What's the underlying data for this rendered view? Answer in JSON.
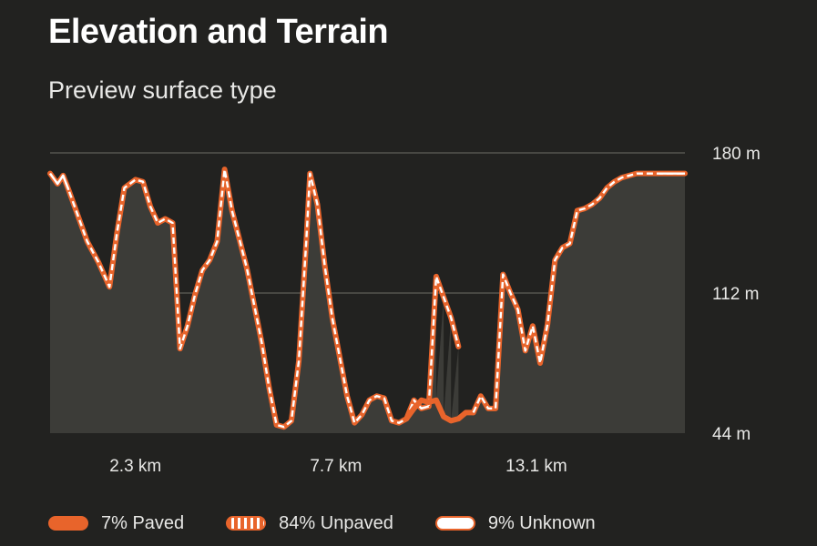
{
  "header": {
    "title": "Elevation and Terrain",
    "subtitle": "Preview surface type"
  },
  "colors": {
    "background": "#222220",
    "paved": "#e8642b",
    "unpaved_dash": "#ffffff",
    "area_fill": "#3c3c38",
    "grid": "#55554f"
  },
  "legend": {
    "paved": "7% Paved",
    "unpaved": "84% Unpaved",
    "unknown": "9% Unknown"
  },
  "chart_data": {
    "type": "area",
    "title": "Elevation and Terrain",
    "subtitle": "Preview surface type",
    "x_unit": "km",
    "xlim": [
      0,
      17.1
    ],
    "ylim": [
      44,
      180
    ],
    "yticks": [
      {
        "value": 180,
        "label": "180 m"
      },
      {
        "value": 112,
        "label": "112 m"
      },
      {
        "value": 44,
        "label": "44 m"
      }
    ],
    "xticks": [
      {
        "value": 2.3,
        "label": "2.3 km"
      },
      {
        "value": 7.7,
        "label": "7.7 km"
      },
      {
        "value": 13.1,
        "label": "13.1 km"
      }
    ],
    "grid": true,
    "legend_position": "bottom-left",
    "series": [
      {
        "surface": "unpaved",
        "x": [
          0,
          0.2,
          0.35,
          0.5,
          0.8,
          1.0,
          1.3,
          1.6,
          1.8,
          2.0,
          2.3,
          2.5,
          2.7,
          2.9,
          3.1,
          3.3,
          3.5,
          3.7,
          3.9,
          4.1,
          4.3,
          4.5,
          4.7,
          4.9,
          5.1,
          5.3,
          5.5,
          5.7,
          5.9,
          6.1,
          6.3,
          6.5,
          6.7,
          6.9,
          7.0,
          7.2,
          7.4,
          7.6,
          7.8,
          8.0,
          8.2,
          8.4,
          8.6,
          8.8,
          9.0,
          9.2,
          9.4,
          9.6,
          9.8,
          10.0,
          10.2,
          10.4,
          10.6,
          10.8,
          11.0
        ],
        "y": [
          170,
          165,
          169,
          162,
          147,
          137,
          127,
          115,
          141,
          163,
          167,
          166,
          154,
          146,
          148,
          146,
          85,
          96,
          111,
          123,
          128,
          137,
          172,
          152,
          138,
          124,
          106,
          88,
          66,
          48,
          47,
          50,
          79,
          137,
          170,
          155,
          125,
          100,
          81,
          62,
          49,
          53,
          60,
          62,
          61,
          50,
          49,
          51,
          60,
          56,
          57,
          120,
          110,
          100,
          86
        ],
        "unknown_ranges": [
          [
            0,
            0.5
          ],
          [
            9.7,
            10.2
          ]
        ]
      },
      {
        "surface": "paved",
        "x": [
          9.6,
          9.8,
          10.0,
          10.2,
          10.4,
          10.6,
          10.8,
          11.0,
          11.2,
          11.4
        ],
        "y": [
          51,
          56,
          60,
          59,
          60,
          52,
          50,
          51,
          54,
          54
        ]
      },
      {
        "surface": "unpaved",
        "x": [
          11.4,
          11.6,
          11.8,
          12.0,
          12.2,
          12.4,
          12.6,
          12.8,
          13.0,
          13.2,
          13.4,
          13.6,
          13.8,
          14.0,
          14.2,
          14.4,
          14.6,
          14.8,
          15.0,
          15.2,
          15.4,
          15.6,
          15.8,
          16.0,
          16.2,
          16.4,
          16.6,
          16.8,
          17.1
        ],
        "y": [
          54,
          62,
          56,
          56,
          121,
          112,
          104,
          84,
          96,
          78,
          97,
          128,
          134,
          136,
          152,
          153,
          155,
          158,
          163,
          166,
          168,
          169,
          170,
          170,
          170,
          170,
          170,
          170,
          170
        ],
        "unknown_ranges": [
          [
            16.3,
            17.1
          ]
        ]
      }
    ]
  }
}
